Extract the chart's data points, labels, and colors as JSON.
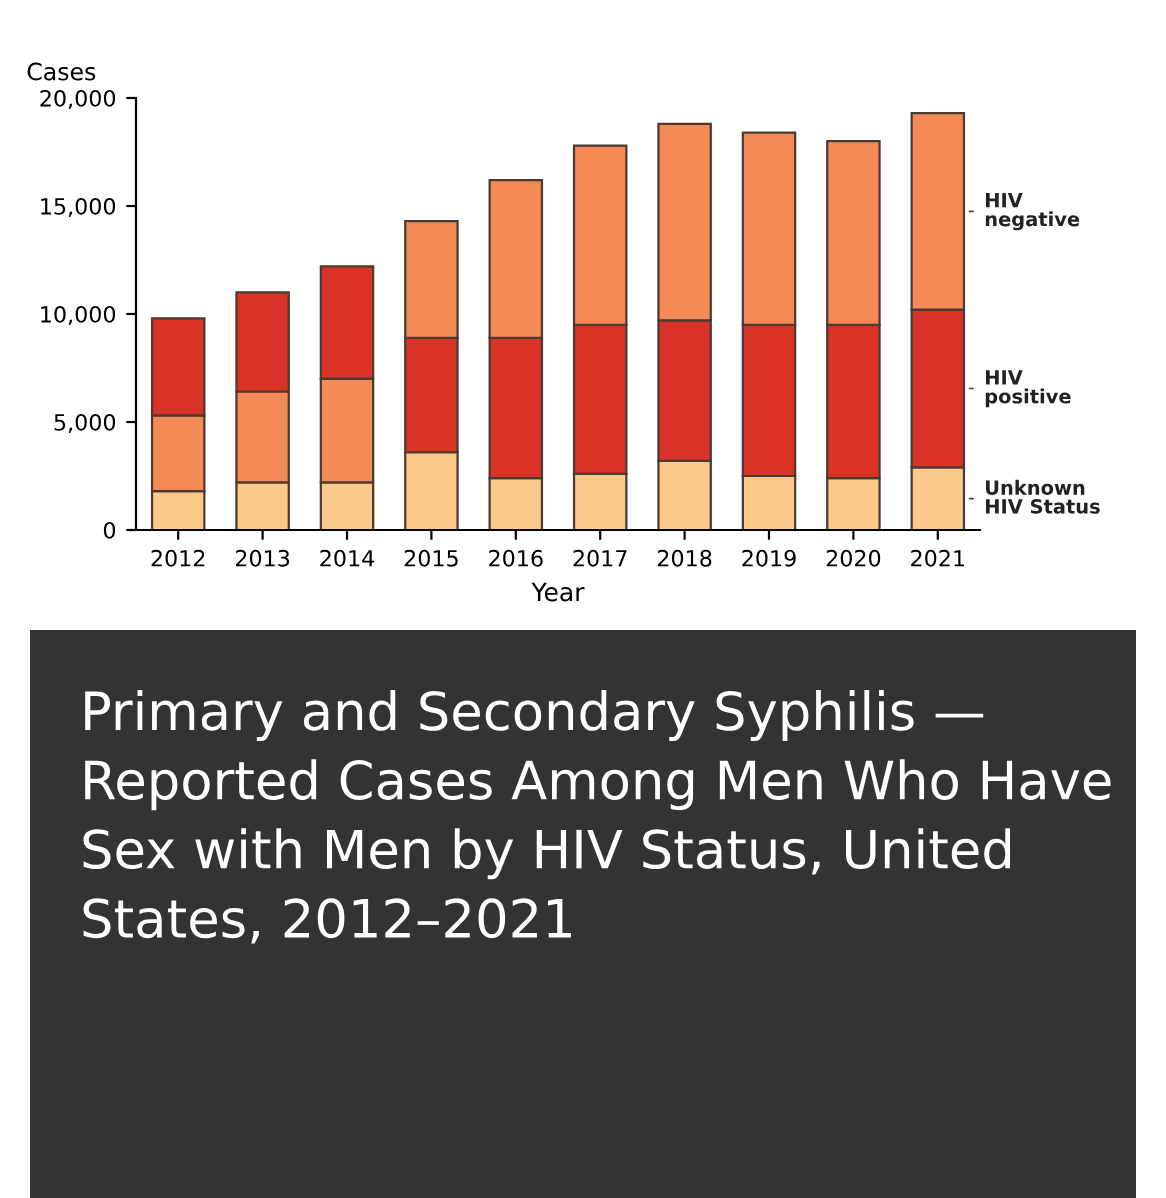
{
  "chart_data": {
    "type": "bar",
    "title": "Primary and Secondary Syphilis — Reported Cases Among Men Who Have Sex with Men by HIV Status, United States, 2012–2021",
    "ylabel": "Cases",
    "xlabel": "Year",
    "categories": [
      "2012",
      "2013",
      "2014",
      "2015",
      "2016",
      "2017",
      "2018",
      "2019",
      "2020",
      "2021"
    ],
    "series": [
      {
        "name": "Unknown\nHIV Status",
        "color": "#fdc98a",
        "values": [
          1800,
          2200,
          2200,
          3600,
          2400,
          2600,
          3200,
          2500,
          2400,
          2900
        ],
        "base": [
          0,
          0,
          0,
          0,
          0,
          0,
          0,
          0,
          0,
          0
        ]
      },
      {
        "name": "HIV\npositive",
        "color": "#d93227",
        "values": [
          4500,
          4600,
          5200,
          5300,
          6500,
          6900,
          6500,
          7000,
          7100,
          7300
        ],
        "base": [
          5300,
          6400,
          7000,
          3600,
          2400,
          2600,
          3200,
          2500,
          2400,
          2900
        ]
      },
      {
        "name": "HIV\nnegative",
        "color": "#f48a56",
        "values": [
          3500,
          4200,
          4800,
          5400,
          7300,
          8300,
          9100,
          8900,
          8500,
          9100
        ],
        "base": [
          1800,
          2200,
          2200,
          8900,
          8900,
          9500,
          9700,
          9500,
          9500,
          10200
        ]
      }
    ],
    "ylim": [
      0,
      20000
    ],
    "yticks": [
      {
        "value": 0,
        "label": "0"
      },
      {
        "value": 5000,
        "label": "5,000"
      },
      {
        "value": 10000,
        "label": "10,000"
      },
      {
        "value": 15000,
        "label": "15,000"
      },
      {
        "value": 20000,
        "label": "20,000"
      }
    ],
    "grid": false,
    "legend": false
  }
}
